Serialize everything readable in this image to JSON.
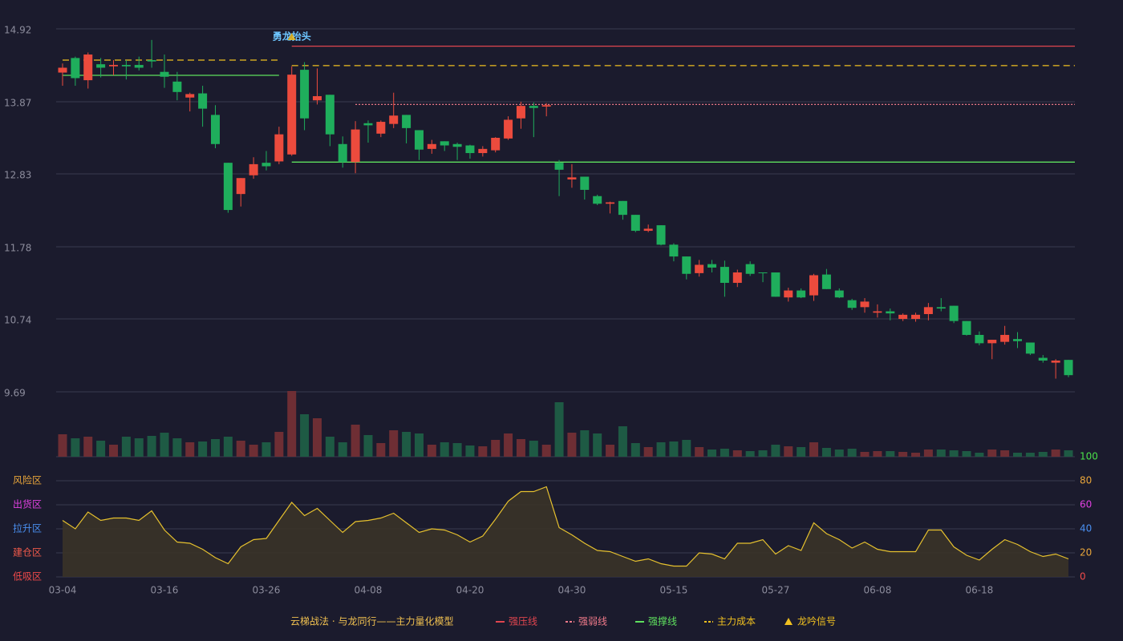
{
  "chart_data": {
    "type": "candlestick",
    "categories": [
      "03-04",
      null,
      null,
      null,
      null,
      null,
      null,
      null,
      "03-16",
      null,
      null,
      null,
      null,
      null,
      null,
      null,
      "03-26",
      null,
      null,
      null,
      null,
      null,
      null,
      null,
      "04-08",
      null,
      null,
      null,
      null,
      null,
      null,
      null,
      "04-20",
      null,
      null,
      null,
      null,
      null,
      null,
      null,
      "04-30",
      null,
      null,
      null,
      null,
      null,
      null,
      null,
      "05-15",
      null,
      null,
      null,
      null,
      null,
      null,
      null,
      "05-27",
      null,
      null,
      null,
      null,
      null,
      null,
      null,
      "06-08",
      null,
      null,
      null,
      null,
      null,
      null,
      null,
      "06-18",
      null,
      null,
      null,
      null,
      null,
      null,
      null
    ],
    "open": [
      14.29,
      14.5,
      14.18,
      14.41,
      14.38,
      14.4,
      14.4,
      14.47,
      14.3,
      14.16,
      13.93,
      13.99,
      13.68,
      12.99,
      12.54,
      12.81,
      12.99,
      13.01,
      13.11,
      14.33,
      13.89,
      13.97,
      13.26,
      13.0,
      13.56,
      13.41,
      13.55,
      13.68,
      13.46,
      13.19,
      13.3,
      13.26,
      13.24,
      13.13,
      13.17,
      13.34,
      13.63,
      13.81,
      13.8,
      12.99,
      12.75,
      12.79,
      12.51,
      12.4,
      12.44,
      12.24,
      12.01,
      12.09,
      11.81,
      11.64,
      11.4,
      11.53,
      11.49,
      11.26,
      11.53,
      11.41,
      11.41,
      11.05,
      11.15,
      11.08,
      11.38,
      11.15,
      11.01,
      10.91,
      10.83,
      10.85,
      10.74,
      10.74,
      10.81,
      10.91,
      10.93,
      10.71,
      10.51,
      10.39,
      10.41,
      10.45,
      10.4,
      10.18,
      10.11,
      10.15
    ],
    "high": [
      14.42,
      14.52,
      14.58,
      14.5,
      14.47,
      14.47,
      14.52,
      14.76,
      14.55,
      14.3,
      14.0,
      14.1,
      13.82,
      12.99,
      12.77,
      13.07,
      13.16,
      13.51,
      14.38,
      14.44,
      14.35,
      13.97,
      13.37,
      13.59,
      13.6,
      13.6,
      14.0,
      13.68,
      13.46,
      13.32,
      13.3,
      13.28,
      13.25,
      13.23,
      13.36,
      13.66,
      13.87,
      13.86,
      13.85,
      13.03,
      12.97,
      12.79,
      12.53,
      12.43,
      12.44,
      12.24,
      12.1,
      12.09,
      11.83,
      11.64,
      11.59,
      11.59,
      11.58,
      11.45,
      11.57,
      11.41,
      11.41,
      11.19,
      11.18,
      11.39,
      11.46,
      11.18,
      11.03,
      11.04,
      10.95,
      10.89,
      10.82,
      10.83,
      10.97,
      11.04,
      10.93,
      10.71,
      10.56,
      10.44,
      10.64,
      10.55,
      10.4,
      10.22,
      10.16,
      10.15
    ],
    "low": [
      14.1,
      14.1,
      14.06,
      14.22,
      14.25,
      14.19,
      14.32,
      14.36,
      14.07,
      13.89,
      13.73,
      13.51,
      13.2,
      12.27,
      12.36,
      12.76,
      12.88,
      12.97,
      13.09,
      13.46,
      13.83,
      13.23,
      12.92,
      12.84,
      13.28,
      13.36,
      13.49,
      13.27,
      13.03,
      13.12,
      13.16,
      13.03,
      13.05,
      13.08,
      13.14,
      13.32,
      13.48,
      13.36,
      13.66,
      12.51,
      12.63,
      12.46,
      12.38,
      12.26,
      12.17,
      11.99,
      11.99,
      11.8,
      11.57,
      11.31,
      11.35,
      11.41,
      11.06,
      11.2,
      11.36,
      11.27,
      11.06,
      10.99,
      11.04,
      11.0,
      11.17,
      11.04,
      10.87,
      10.83,
      10.76,
      10.72,
      10.71,
      10.7,
      10.72,
      10.85,
      10.68,
      10.5,
      10.36,
      10.16,
      10.37,
      10.32,
      10.22,
      10.11,
      9.88,
      9.9
    ],
    "close": [
      14.36,
      14.21,
      14.55,
      14.36,
      14.4,
      14.38,
      14.36,
      14.45,
      14.23,
      14.01,
      13.98,
      13.77,
      13.26,
      12.31,
      12.77,
      12.97,
      12.94,
      13.4,
      14.26,
      13.63,
      13.95,
      13.4,
      13.0,
      13.47,
      13.53,
      13.58,
      13.67,
      13.49,
      13.18,
      13.26,
      13.24,
      13.22,
      13.13,
      13.19,
      13.35,
      13.61,
      13.81,
      13.78,
      13.82,
      12.89,
      12.78,
      12.6,
      12.4,
      12.42,
      12.24,
      12.01,
      12.04,
      11.81,
      11.64,
      11.39,
      11.52,
      11.48,
      11.26,
      11.41,
      11.39,
      11.4,
      11.06,
      11.15,
      11.05,
      11.37,
      11.17,
      11.05,
      10.9,
      10.99,
      10.85,
      10.82,
      10.8,
      10.8,
      10.91,
      10.89,
      10.71,
      10.51,
      10.39,
      10.44,
      10.51,
      10.42,
      10.24,
      10.14,
      10.14,
      9.93
    ],
    "up_color": "#ec4b3d",
    "down_color": "#1fae5c",
    "ylim": [
      9.69,
      14.92
    ],
    "yticks": [
      14.92,
      13.87,
      12.83,
      11.78,
      10.74,
      9.69
    ],
    "grid": true,
    "volume": {
      "values": [
        28,
        23,
        25,
        20,
        15,
        25,
        23,
        26,
        30,
        23,
        18,
        19,
        22,
        25,
        20,
        15,
        18,
        31,
        82,
        53,
        48,
        25,
        18,
        40,
        27,
        17,
        33,
        31,
        29,
        15,
        18,
        17,
        14,
        13,
        21,
        29,
        22,
        20,
        15,
        68,
        30,
        33,
        29,
        15,
        38,
        17,
        12,
        18,
        19,
        21,
        12,
        9,
        10,
        8,
        7,
        8,
        15,
        13,
        12,
        18,
        11,
        9,
        10,
        6,
        7,
        7,
        6,
        5,
        9,
        9,
        8,
        7,
        5,
        9,
        8,
        5,
        5,
        6,
        9,
        8
      ],
      "up_color": "#6e2e34",
      "down_color": "#1e5a44"
    },
    "indicator": {
      "values": [
        47,
        40,
        54,
        47,
        49,
        49,
        47,
        55,
        39,
        29,
        28,
        23,
        16,
        11,
        25,
        31,
        32,
        47,
        62,
        51,
        57,
        47,
        37,
        46,
        47,
        49,
        53,
        45,
        37,
        40,
        39,
        35,
        29,
        34,
        48,
        63,
        71,
        71,
        75,
        41,
        35,
        28,
        22,
        21,
        17,
        13,
        15,
        11,
        9,
        9,
        20,
        19,
        15,
        28,
        28,
        31,
        19,
        26,
        22,
        45,
        36,
        31,
        24,
        29,
        23,
        21,
        21,
        21,
        39,
        39,
        25,
        18,
        14,
        23,
        31,
        27,
        21,
        17,
        19,
        15
      ],
      "color": "#e6c12e",
      "fill": "#3a3328",
      "ylim": [
        0,
        100
      ],
      "yticks": [
        0,
        20,
        40,
        60,
        80,
        100
      ],
      "ytick_colors": [
        "#f04a4a",
        "#e8a53a",
        "#4a8ff0",
        "#e040e0",
        "#e8a53a",
        "#4ae04a"
      ],
      "zones": [
        {
          "label": "风险区",
          "value": 80,
          "color": "#e8a53a"
        },
        {
          "label": "出货区",
          "value": 60,
          "color": "#e040e0"
        },
        {
          "label": "拉升区",
          "value": 40,
          "color": "#4a8ff0"
        },
        {
          "label": "建仓区",
          "value": 20,
          "color": "#f05a4a"
        },
        {
          "label": "低吸区",
          "value": 0,
          "color": "#f04a4a"
        }
      ]
    },
    "levels": [
      {
        "name": "强压线",
        "color": "#e0454f",
        "dash": "none",
        "segments": [
          {
            "start": 18,
            "end": 79,
            "value": 14.67
          }
        ]
      },
      {
        "name": "强弱线",
        "color": "#f07a8a",
        "dash": "2,2",
        "segments": [
          {
            "start": 23,
            "end": 79,
            "value": 13.83
          }
        ]
      },
      {
        "name": "强撑线",
        "color": "#5ee05e",
        "dash": "none",
        "segments": [
          {
            "start": 0,
            "end": 17,
            "value": 14.25
          },
          {
            "start": 18,
            "end": 79,
            "value": 13.0
          }
        ]
      },
      {
        "name": "主力成本",
        "color": "#f0c020",
        "dash": "8,5",
        "segments": [
          {
            "start": 0,
            "end": 17,
            "value": 14.47
          },
          {
            "start": 18,
            "end": 79,
            "value": 14.39
          }
        ]
      }
    ],
    "signal": {
      "name": "龙吟信号",
      "color": "#f0c020",
      "index": 18,
      "label": "勇龙抬头",
      "label_color": "#6ec6ff"
    },
    "legend_title": "云梯战法 · 与龙同行——主力量化模型",
    "legend_title_color": "#f0c050"
  }
}
